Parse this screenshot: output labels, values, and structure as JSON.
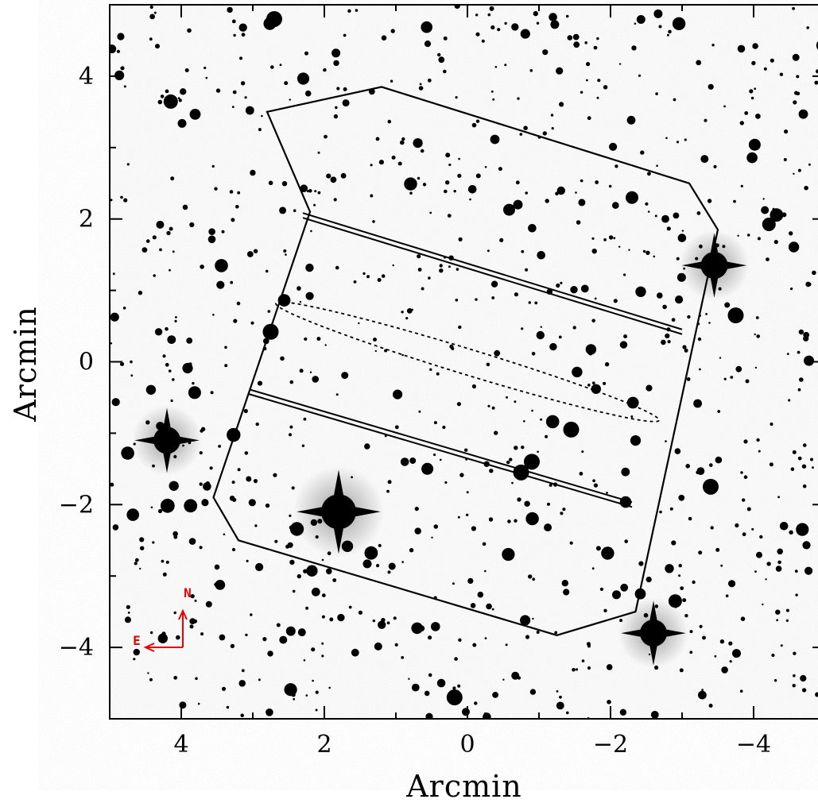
{
  "chart_data": {
    "type": "scatter",
    "title": "",
    "xlabel": "Arcmin",
    "ylabel": "Arcmin",
    "xlim": [
      5,
      -5
    ],
    "ylim": [
      -5,
      5
    ],
    "x_ticks": [
      4,
      2,
      0,
      -2,
      -4
    ],
    "y_ticks": [
      4,
      2,
      0,
      -2,
      -4
    ],
    "x_tick_labels": [
      "4",
      "2",
      "0",
      "−2",
      "−4"
    ],
    "y_tick_labels": [
      "4",
      "2",
      "0",
      "−2",
      "−4"
    ],
    "grid": false,
    "background": "greyscale star field",
    "field_of_view_outline": [
      [
        2.8,
        3.5
      ],
      [
        1.2,
        3.85
      ],
      [
        -3.1,
        2.5
      ],
      [
        -3.5,
        1.85
      ],
      [
        -2.35,
        -3.5
      ],
      [
        -1.25,
        -3.83
      ],
      [
        3.2,
        -2.5
      ],
      [
        3.55,
        -1.9
      ],
      [
        2.2,
        2.1
      ]
    ],
    "chip_gaps": [
      {
        "from": [
          2.3,
          2.05
        ],
        "to": [
          -3.0,
          0.42
        ]
      },
      {
        "from": [
          3.05,
          -0.42
        ],
        "to": [
          -2.3,
          -2.0
        ]
      }
    ],
    "slit_region": {
      "center": [
        0.0,
        0.0
      ],
      "length_arcmin": 5.6,
      "width_arcmin": 0.18,
      "position_angle_deg": -17
    },
    "compass": {
      "north_label": "N",
      "east_label": "E",
      "color": "#e60000"
    },
    "bright_stars": [
      {
        "x": 1.8,
        "y": -2.1,
        "mag": 1
      },
      {
        "x": 4.2,
        "y": -1.1,
        "mag": 2
      },
      {
        "x": -2.6,
        "y": -3.8,
        "mag": 2
      },
      {
        "x": -3.45,
        "y": 1.35,
        "mag": 2
      },
      {
        "x": 2.7,
        "y": 4.8,
        "mag": 3
      },
      {
        "x": 2.75,
        "y": 0.42,
        "mag": 3
      },
      {
        "x": -3.75,
        "y": 0.65,
        "mag": 3
      },
      {
        "x": -1.45,
        "y": -0.95,
        "mag": 3
      },
      {
        "x": -0.75,
        "y": -1.55,
        "mag": 3
      },
      {
        "x": -0.9,
        "y": -1.4,
        "mag": 3
      },
      {
        "x": -3.4,
        "y": -1.75,
        "mag": 3
      },
      {
        "x": 0.18,
        "y": -4.7,
        "mag": 3
      },
      {
        "x": -2.3,
        "y": 2.3,
        "mag": 4
      }
    ]
  }
}
